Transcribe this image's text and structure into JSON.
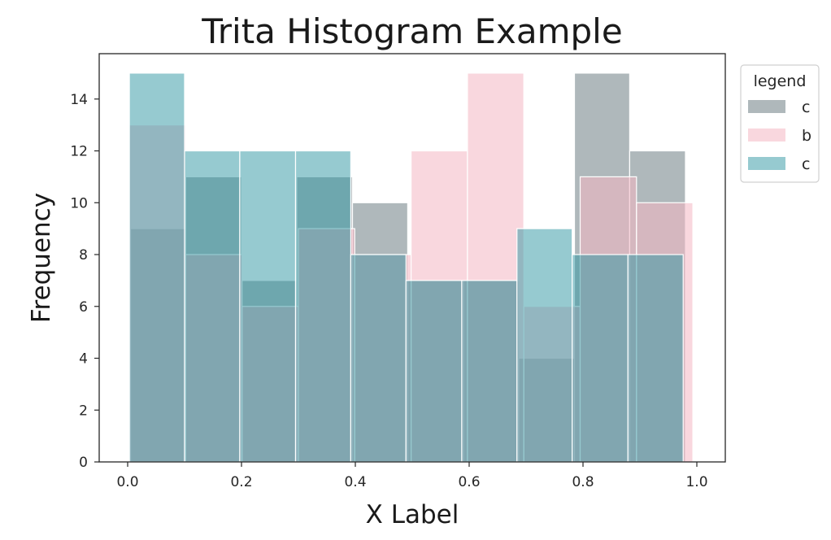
{
  "chart_data": {
    "type": "histogram",
    "title": "Trita Histogram Example",
    "xlabel": "X Label",
    "ylabel": "Frequency",
    "xlim": [
      -0.05,
      1.05
    ],
    "ylim": [
      0,
      15.75
    ],
    "xticks": [
      0.0,
      0.2,
      0.4,
      0.6,
      0.8,
      1.0
    ],
    "xtick_labels": [
      "0.0",
      "0.2",
      "0.4",
      "0.6",
      "0.8",
      "1.0"
    ],
    "yticks": [
      0,
      2,
      4,
      6,
      8,
      10,
      12,
      14
    ],
    "ytick_labels": [
      "0",
      "2",
      "4",
      "6",
      "8",
      "10",
      "12",
      "14"
    ],
    "legend": {
      "title": "legend",
      "position": "outside-top-right"
    },
    "series": [
      {
        "name": "c",
        "color": "#5f7178",
        "opacity": 0.5,
        "bins": [
          {
            "x0": 0.005,
            "x1": 0.102,
            "count": 9
          },
          {
            "x0": 0.102,
            "x1": 0.2,
            "count": 11
          },
          {
            "x0": 0.2,
            "x1": 0.297,
            "count": 7
          },
          {
            "x0": 0.297,
            "x1": 0.395,
            "count": 11
          },
          {
            "x0": 0.395,
            "x1": 0.492,
            "count": 10
          },
          {
            "x0": 0.492,
            "x1": 0.59,
            "count": 7
          },
          {
            "x0": 0.59,
            "x1": 0.687,
            "count": 7
          },
          {
            "x0": 0.687,
            "x1": 0.785,
            "count": 4
          },
          {
            "x0": 0.785,
            "x1": 0.882,
            "count": 15
          },
          {
            "x0": 0.882,
            "x1": 0.98,
            "count": 12
          }
        ]
      },
      {
        "name": "b",
        "color": "#f4b6c2",
        "opacity": 0.55,
        "bins": [
          {
            "x0": 0.003,
            "x1": 0.102,
            "count": 13
          },
          {
            "x0": 0.102,
            "x1": 0.201,
            "count": 8
          },
          {
            "x0": 0.201,
            "x1": 0.3,
            "count": 6
          },
          {
            "x0": 0.3,
            "x1": 0.399,
            "count": 9
          },
          {
            "x0": 0.399,
            "x1": 0.498,
            "count": 8
          },
          {
            "x0": 0.498,
            "x1": 0.597,
            "count": 12
          },
          {
            "x0": 0.597,
            "x1": 0.696,
            "count": 15
          },
          {
            "x0": 0.696,
            "x1": 0.795,
            "count": 6
          },
          {
            "x0": 0.795,
            "x1": 0.894,
            "count": 11
          },
          {
            "x0": 0.894,
            "x1": 0.993,
            "count": 10
          }
        ]
      },
      {
        "name": "c",
        "color": "#2d96a2",
        "opacity": 0.5,
        "bins": [
          {
            "x0": 0.003,
            "x1": 0.1,
            "count": 15
          },
          {
            "x0": 0.1,
            "x1": 0.197,
            "count": 12
          },
          {
            "x0": 0.197,
            "x1": 0.295,
            "count": 12
          },
          {
            "x0": 0.295,
            "x1": 0.392,
            "count": 12
          },
          {
            "x0": 0.392,
            "x1": 0.489,
            "count": 8
          },
          {
            "x0": 0.489,
            "x1": 0.587,
            "count": 7
          },
          {
            "x0": 0.587,
            "x1": 0.684,
            "count": 7
          },
          {
            "x0": 0.684,
            "x1": 0.781,
            "count": 9
          },
          {
            "x0": 0.781,
            "x1": 0.879,
            "count": 8
          },
          {
            "x0": 0.879,
            "x1": 0.976,
            "count": 8
          }
        ]
      }
    ]
  }
}
